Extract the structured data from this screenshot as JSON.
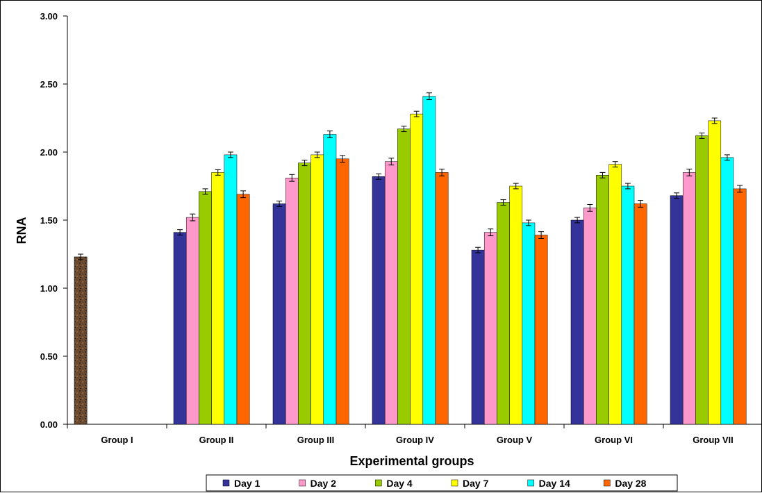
{
  "chart_data": {
    "type": "bar",
    "title": "",
    "xlabel": "Experimental groups",
    "ylabel": "RNA",
    "ylim": [
      0,
      3.0
    ],
    "yticks": [
      "0.00",
      "0.50",
      "1.00",
      "1.50",
      "2.00",
      "2.50",
      "3.00"
    ],
    "grid": false,
    "legend_position": "bottom",
    "categories": [
      "Group I",
      "Group II",
      "Group III",
      "Group IV",
      "Group V",
      "Group VI",
      "Group VII"
    ],
    "control": {
      "category": "Group I",
      "value": 1.23,
      "error": 0.02,
      "color": "#5a3e2b"
    },
    "series": [
      {
        "name": "Day 1",
        "color": "#333399",
        "values": [
          null,
          1.41,
          1.62,
          1.82,
          1.28,
          1.5,
          1.68
        ],
        "errors": [
          null,
          0.02,
          0.02,
          0.02,
          0.02,
          0.02,
          0.02
        ]
      },
      {
        "name": "Day 2",
        "color": "#ff99cc",
        "values": [
          null,
          1.52,
          1.81,
          1.93,
          1.41,
          1.59,
          1.85
        ],
        "errors": [
          null,
          0.025,
          0.025,
          0.025,
          0.025,
          0.025,
          0.025
        ]
      },
      {
        "name": "Day 4",
        "color": "#99cc00",
        "values": [
          null,
          1.71,
          1.92,
          2.17,
          1.63,
          1.83,
          2.12
        ],
        "errors": [
          null,
          0.02,
          0.02,
          0.02,
          0.02,
          0.02,
          0.02
        ]
      },
      {
        "name": "Day 7",
        "color": "#ffff00",
        "values": [
          null,
          1.85,
          1.98,
          2.28,
          1.75,
          1.91,
          2.23
        ],
        "errors": [
          null,
          0.02,
          0.02,
          0.02,
          0.02,
          0.02,
          0.02
        ]
      },
      {
        "name": "Day 14",
        "color": "#00ffff",
        "values": [
          null,
          1.98,
          2.13,
          2.41,
          1.48,
          1.75,
          1.96
        ],
        "errors": [
          null,
          0.02,
          0.025,
          0.025,
          0.02,
          0.02,
          0.02
        ]
      },
      {
        "name": "Day 28",
        "color": "#ff6600",
        "values": [
          null,
          1.69,
          1.95,
          1.85,
          1.39,
          1.62,
          1.73
        ],
        "errors": [
          null,
          0.025,
          0.025,
          0.025,
          0.025,
          0.025,
          0.025
        ]
      }
    ]
  }
}
